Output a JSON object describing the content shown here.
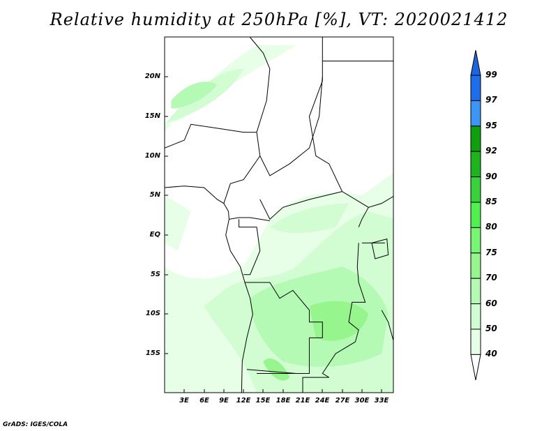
{
  "title": "Relative humidity at 250hPa [%], VT: 2020021412",
  "y_axis": [
    "20N",
    "15N",
    "10N",
    "5N",
    "EQ",
    "5S",
    "10S",
    "15S"
  ],
  "x_axis": [
    "3E",
    "6E",
    "9E",
    "12E",
    "15E",
    "18E",
    "21E",
    "24E",
    "27E",
    "30E",
    "33E"
  ],
  "colorbar": {
    "labels": [
      "99",
      "97",
      "95",
      "92",
      "90",
      "85",
      "80",
      "75",
      "70",
      "60",
      "50",
      "40"
    ],
    "colors": [
      "#1e64dc",
      "#1e6eeb",
      "#3c96f5",
      "#0fa00f",
      "#1eb41e",
      "#37d23c",
      "#50f050",
      "#78f573",
      "#96f58c",
      "#b4fab4",
      "#d2fcd2",
      "#e6ffe6"
    ]
  },
  "credit": "GrADS: IGES/COLA"
}
